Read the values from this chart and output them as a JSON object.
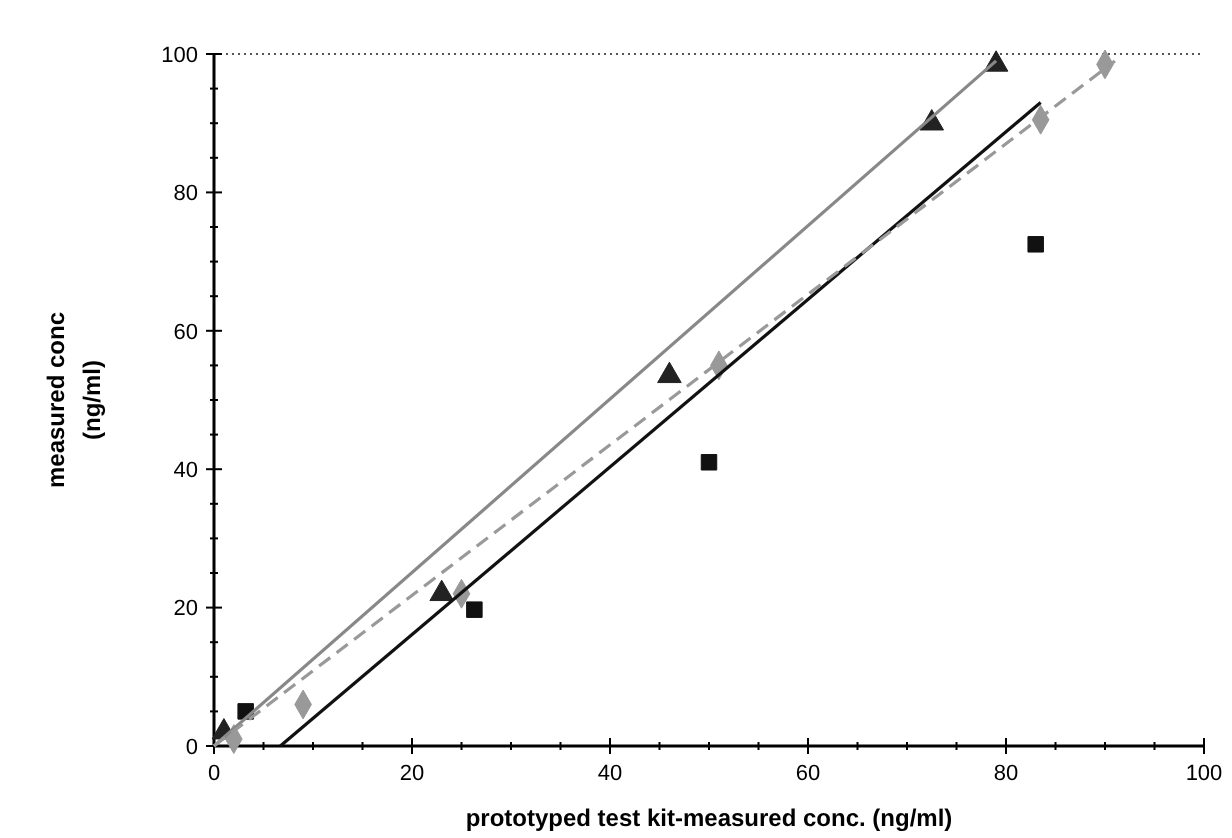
{
  "chart_data": {
    "type": "scatter",
    "xlabel": "prototyped test kit-measured conc. (ng/ml)",
    "ylabel": "measured conc\n(ng/ml)",
    "xlim": [
      0,
      100
    ],
    "ylim": [
      0,
      100
    ],
    "xticks": [
      0,
      20,
      40,
      60,
      80,
      100
    ],
    "yticks": [
      0,
      20,
      40,
      60,
      80,
      100
    ],
    "grid": false,
    "series": [
      {
        "marker": "triangle",
        "color": "#222222",
        "x": [
          1,
          23,
          46,
          72.5,
          79
        ],
        "values": [
          2,
          22,
          53.5,
          90,
          98.5
        ]
      },
      {
        "marker": "square",
        "color": "#111111",
        "x": [
          3.2,
          26.3,
          50,
          83
        ],
        "values": [
          5,
          19.7,
          41,
          72.5
        ]
      },
      {
        "marker": "diamond",
        "color": "#999999",
        "x": [
          2,
          9,
          25,
          51,
          83.5,
          90
        ],
        "values": [
          1,
          6,
          22,
          55,
          90.5,
          98.5
        ]
      },
      {
        "type": "line",
        "marker": "none",
        "line_style": "solid",
        "color": "#888888",
        "x": [
          0,
          79
        ],
        "values": [
          0,
          99
        ]
      },
      {
        "type": "line",
        "marker": "none",
        "line_style": "solid",
        "color": "#111111",
        "x": [
          6.7,
          83.5
        ],
        "values": [
          0,
          93
        ]
      },
      {
        "type": "line",
        "marker": "none",
        "line_style": "dashed",
        "color": "#999999",
        "x": [
          0,
          91
        ],
        "values": [
          0,
          99
        ]
      }
    ]
  }
}
